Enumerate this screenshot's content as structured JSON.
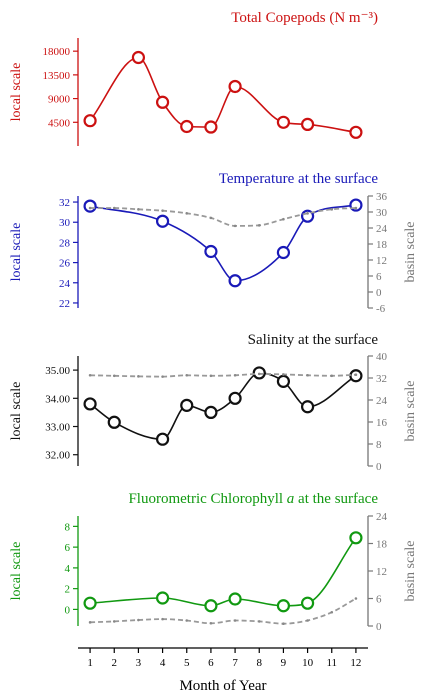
{
  "x_axis": {
    "label": "Month of Year",
    "ticks": [
      1,
      2,
      3,
      4,
      5,
      6,
      7,
      8,
      9,
      10,
      11,
      12
    ],
    "xlim": [
      0.5,
      12.5
    ]
  },
  "panel_axis_labels": {
    "local": "local scale",
    "basin": "basin scale"
  },
  "chart_data": [
    {
      "type": "line",
      "title": "Total Copepods (N m⁻³)",
      "color": "#cc1111",
      "ylabel": "local scale",
      "ylim": [
        0,
        20500
      ],
      "yticks": [
        4500,
        9000,
        13500,
        18000
      ],
      "ytick_labels": [
        "4500",
        "9000",
        "13500",
        "18000"
      ],
      "series": [
        {
          "x": [
            1,
            3,
            4,
            5,
            6,
            7,
            9,
            10,
            12
          ],
          "values": [
            4800,
            16800,
            8300,
            3700,
            3600,
            11300,
            4500,
            4100,
            2600
          ]
        }
      ]
    },
    {
      "type": "line",
      "title": "Temperature at the surface",
      "color": "#1a1ab8",
      "ylabel": "local scale",
      "ylabel_right": "basin scale",
      "ylim": [
        21.5,
        32.6
      ],
      "yticks": [
        22,
        24,
        26,
        28,
        30,
        32
      ],
      "ytick_labels": [
        "22",
        "24",
        "26",
        "28",
        "30",
        "32"
      ],
      "y2lim": [
        -6,
        36
      ],
      "y2ticks": [
        -6,
        0,
        6,
        12,
        18,
        24,
        30,
        36
      ],
      "y2tick_labels": [
        "-6",
        "0",
        "6",
        "12",
        "18",
        "24",
        "30",
        "36"
      ],
      "series": [
        {
          "role": "local",
          "x": [
            1,
            4,
            6,
            7,
            9,
            10,
            12
          ],
          "values": [
            31.6,
            30.1,
            27.1,
            24.2,
            27.0,
            30.6,
            31.7
          ]
        },
        {
          "role": "basin",
          "x": [
            1,
            2,
            3,
            4,
            5,
            6,
            7,
            8,
            9,
            10,
            11,
            12
          ],
          "values": [
            31.5,
            31.5,
            31.0,
            30.5,
            29.5,
            27.8,
            24.8,
            25.0,
            27.3,
            29.5,
            31.0,
            31.5
          ]
        }
      ]
    },
    {
      "type": "line",
      "title": "Salinity at the surface",
      "color": "#111111",
      "ylabel": "local scale",
      "ylabel_right": "basin scale",
      "ylim": [
        31.6,
        35.5
      ],
      "yticks": [
        32.0,
        33.0,
        34.0,
        35.0
      ],
      "ytick_labels": [
        "32.00",
        "33.00",
        "34.00",
        "35.00"
      ],
      "y2lim": [
        0,
        40
      ],
      "y2ticks": [
        0,
        8,
        16,
        24,
        32,
        40
      ],
      "y2tick_labels": [
        "0",
        "8",
        "16",
        "24",
        "32",
        "40"
      ],
      "series": [
        {
          "role": "local",
          "x": [
            1,
            2,
            4,
            5,
            6,
            7,
            8,
            9,
            10,
            12
          ],
          "values": [
            33.8,
            33.15,
            32.55,
            33.75,
            33.5,
            34.0,
            34.9,
            34.6,
            33.7,
            34.8
          ]
        },
        {
          "role": "basin",
          "x": [
            1,
            2,
            3,
            4,
            5,
            6,
            7,
            8,
            9,
            10,
            11,
            12
          ],
          "values": [
            33.0,
            32.8,
            32.6,
            32.5,
            33.0,
            32.8,
            33.0,
            33.5,
            33.3,
            33.0,
            32.8,
            33.2
          ]
        }
      ]
    },
    {
      "type": "line",
      "title": "Fluorometric Chlorophyll a at the surface",
      "color": "#119911",
      "ylabel": "local scale",
      "ylabel_right": "basin scale",
      "ylim": [
        -1.6,
        9.0
      ],
      "yticks": [
        0,
        2,
        4,
        6,
        8
      ],
      "ytick_labels": [
        "0",
        "2",
        "4",
        "6",
        "8"
      ],
      "y2lim": [
        0,
        24
      ],
      "y2ticks": [
        0,
        6,
        12,
        18,
        24
      ],
      "y2tick_labels": [
        "0",
        "6",
        "12",
        "18",
        "24"
      ],
      "series": [
        {
          "role": "local",
          "x": [
            1,
            4,
            6,
            7,
            9,
            10,
            12
          ],
          "values": [
            0.6,
            1.1,
            0.35,
            1.0,
            0.35,
            0.6,
            6.9
          ]
        },
        {
          "role": "basin",
          "x": [
            1,
            2,
            3,
            4,
            5,
            6,
            7,
            8,
            9,
            10,
            11,
            12
          ],
          "values": [
            0.8,
            1.0,
            1.3,
            1.5,
            1.2,
            0.6,
            1.2,
            1.0,
            0.5,
            1.2,
            3.0,
            6.0
          ]
        }
      ]
    }
  ]
}
